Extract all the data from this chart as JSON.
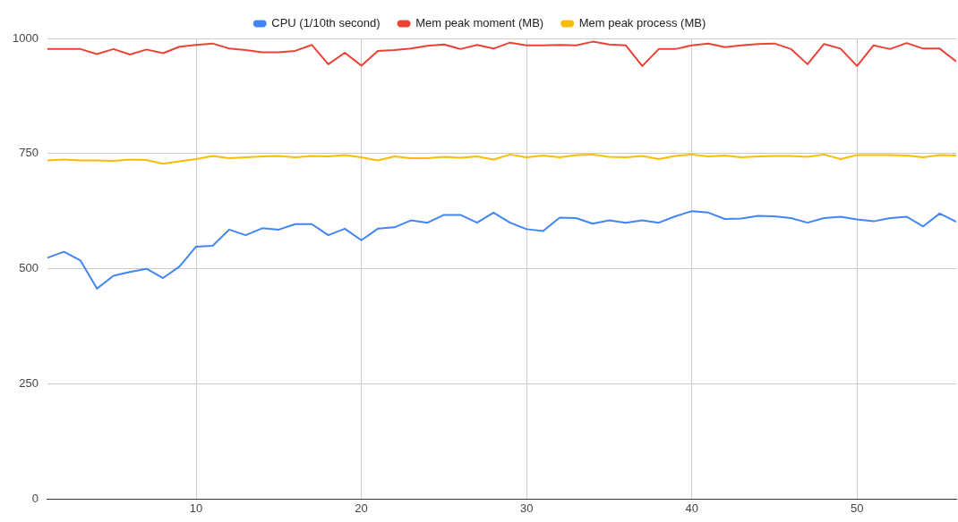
{
  "chart_data": {
    "type": "line",
    "x": [
      1,
      2,
      3,
      4,
      5,
      6,
      7,
      8,
      9,
      10,
      11,
      12,
      13,
      14,
      15,
      16,
      17,
      18,
      19,
      20,
      21,
      22,
      23,
      24,
      25,
      26,
      27,
      28,
      29,
      30,
      31,
      32,
      33,
      34,
      35,
      36,
      37,
      38,
      39,
      40,
      41,
      42,
      43,
      44,
      45,
      46,
      47,
      48,
      49,
      50,
      51,
      52,
      53,
      54,
      55,
      56
    ],
    "series": [
      {
        "name": "CPU (1/10th second)",
        "color": "#4285f4",
        "values": [
          524,
          537,
          518,
          457,
          485,
          493,
          500,
          480,
          505,
          548,
          550,
          585,
          573,
          588,
          585,
          597,
          597,
          573,
          587,
          562,
          587,
          590,
          605,
          600,
          617,
          617,
          600,
          622,
          600,
          586,
          582,
          611,
          610,
          598,
          605,
          600,
          605,
          600,
          614,
          625,
          622,
          608,
          609,
          615,
          614,
          610,
          600,
          610,
          613,
          607,
          603,
          610,
          613,
          592,
          620,
          602
        ]
      },
      {
        "name": "Mem peak moment (MB)",
        "color": "#ea4335",
        "values": [
          977,
          977,
          977,
          966,
          977,
          965,
          976,
          968,
          982,
          986,
          989,
          978,
          975,
          970,
          970,
          973,
          986,
          944,
          969,
          941,
          973,
          975,
          978,
          984,
          987,
          977,
          986,
          978,
          991,
          985,
          985,
          986,
          985,
          993,
          987,
          985,
          940,
          977,
          977,
          985,
          989,
          981,
          985,
          988,
          989,
          977,
          944,
          988,
          978,
          940,
          985,
          977,
          990,
          978,
          978,
          950
        ]
      },
      {
        "name": "Mem peak process (MB)",
        "color": "#fbbc04",
        "values": [
          735,
          737,
          735,
          735,
          734,
          737,
          736,
          728,
          733,
          738,
          745,
          740,
          742,
          744,
          745,
          742,
          745,
          744,
          747,
          742,
          735,
          744,
          740,
          740,
          743,
          741,
          744,
          737,
          748,
          742,
          746,
          742,
          747,
          748,
          743,
          742,
          745,
          738,
          745,
          748,
          744,
          746,
          742,
          744,
          745,
          745,
          743,
          748,
          738,
          747,
          747,
          747,
          746,
          742,
          747,
          746
        ]
      }
    ],
    "xlim": [
      1,
      56
    ],
    "xticks": [
      10,
      20,
      30,
      40,
      50
    ],
    "ylim": [
      0,
      1000
    ],
    "yticks": [
      0,
      250,
      500,
      750,
      1000
    ],
    "grid": true,
    "legend": "top",
    "marker": "none",
    "line_style": "solid"
  }
}
